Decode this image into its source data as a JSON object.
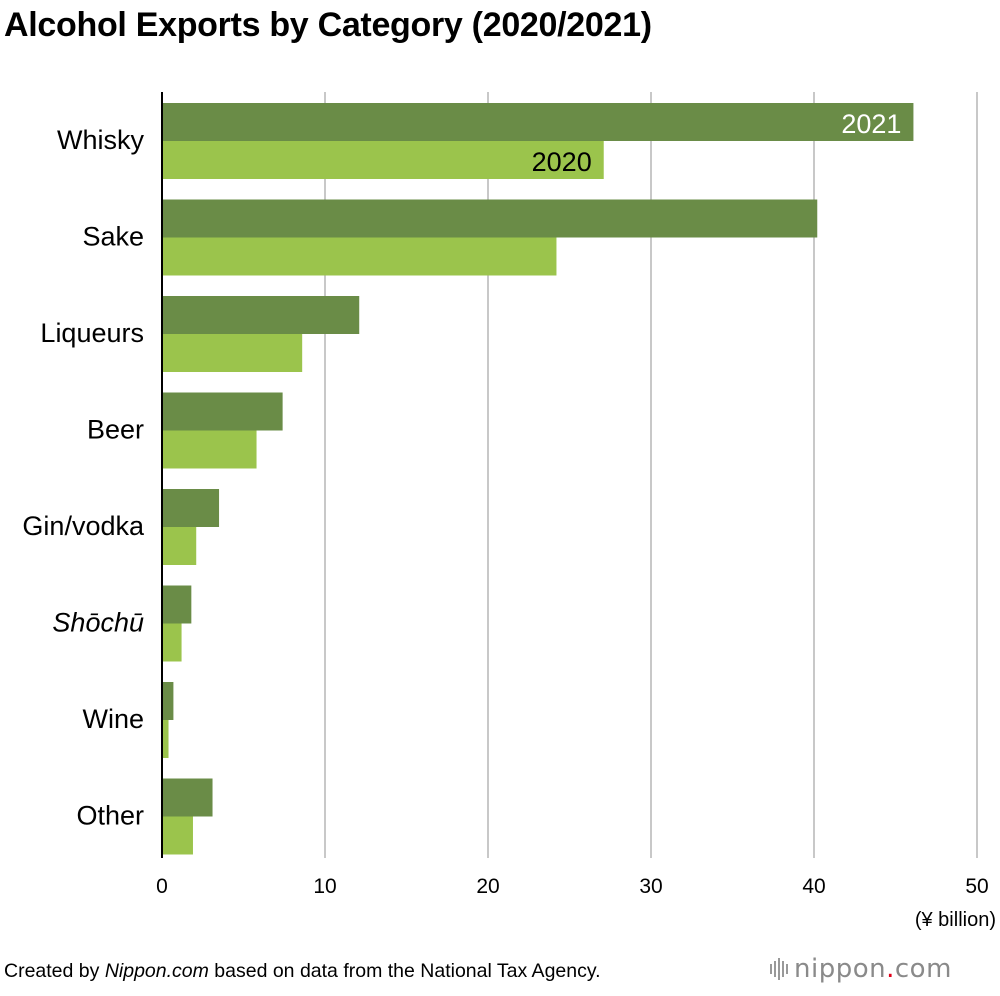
{
  "chart_data": {
    "type": "bar",
    "orientation": "horizontal",
    "title": "Alcohol Exports by Category (2020/2021)",
    "categories": [
      "Whisky",
      "Sake",
      "Liqueurs",
      "Beer",
      "Gin/vodka",
      "Shōchū",
      "Wine",
      "Other"
    ],
    "series": [
      {
        "name": "2021",
        "color": "#6a8c47",
        "values": [
          46.1,
          40.2,
          12.1,
          7.4,
          3.5,
          1.8,
          0.7,
          3.1
        ]
      },
      {
        "name": "2020",
        "color": "#9bc44c",
        "values": [
          27.1,
          24.2,
          8.6,
          5.8,
          2.1,
          1.2,
          0.4,
          1.9
        ]
      }
    ],
    "xlim": [
      0,
      50
    ],
    "xticks": [
      0,
      10,
      20,
      30,
      40,
      50
    ],
    "xlabel": "(¥ billion)",
    "ylabel": "",
    "italic_categories": [
      "Shōchū"
    ],
    "series_labels_on": "Whisky",
    "grid": true
  },
  "footer": {
    "prefix": "Created by ",
    "source_name": "Nippon.com",
    "suffix": " based on data from the National Tax Agency."
  },
  "brand": {
    "name": "nippon",
    "dot": ".",
    "tld": "com"
  }
}
